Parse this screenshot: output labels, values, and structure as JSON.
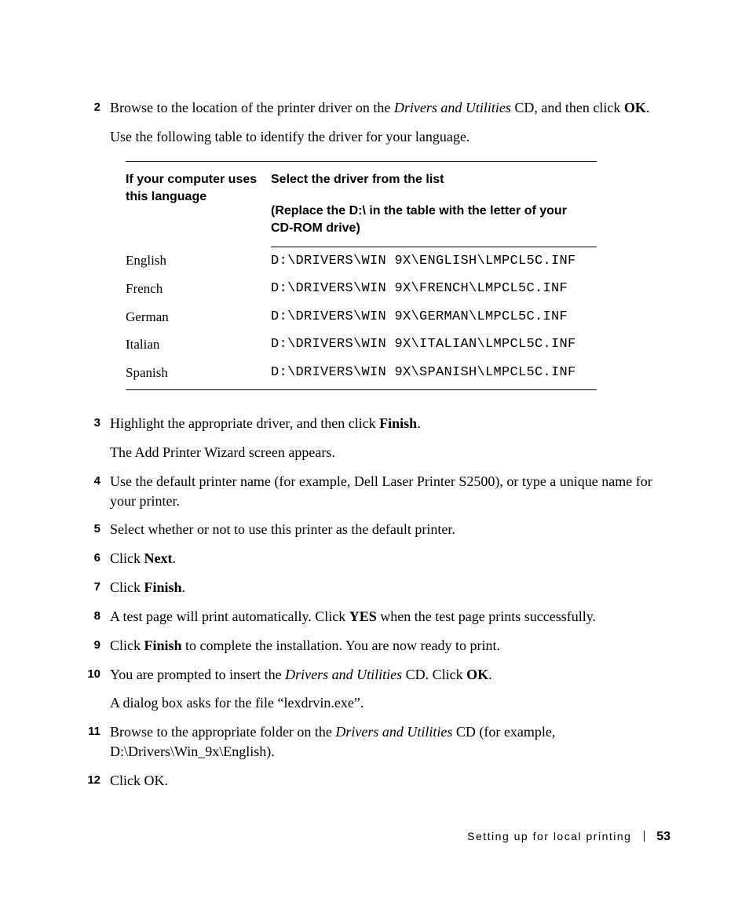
{
  "steps": {
    "s2": {
      "num": "2",
      "p1a": "Browse to the location of the printer driver on the ",
      "p1_em": "Drivers and Utilities",
      "p1b": " CD, and then click ",
      "p1_bold": "OK",
      "p1c": ".",
      "p2": "Use the following table to identify the driver for your language."
    },
    "s3": {
      "num": "3",
      "p1a": "Highlight the appropriate driver, and then click ",
      "p1_bold": "Finish",
      "p1b": ".",
      "p2": "The Add Printer Wizard screen appears."
    },
    "s4": {
      "num": "4",
      "p1": "Use the default printer name (for example, Dell Laser Printer S2500), or type a unique name for your printer."
    },
    "s5": {
      "num": "5",
      "p1": "Select whether or not to use this printer as the default printer."
    },
    "s6": {
      "num": "6",
      "p1a": "Click ",
      "p1_bold": "Next",
      "p1b": "."
    },
    "s7": {
      "num": "7",
      "p1a": "Click ",
      "p1_bold": "Finish",
      "p1b": "."
    },
    "s8": {
      "num": "8",
      "p1a": "A test page will print automatically. Click ",
      "p1_bold": "YES",
      "p1b": " when the test page prints successfully."
    },
    "s9": {
      "num": "9",
      "p1a": "Click ",
      "p1_bold": "Finish",
      "p1b": " to complete the installation. You are now ready to print."
    },
    "s10": {
      "num": "10",
      "p1a": "You are prompted to insert the ",
      "p1_em": "Drivers and Utilities",
      "p1b": " CD. Click ",
      "p1_bold": "OK",
      "p1c": ".",
      "p2": "A dialog box asks for the file “lexdrvin.exe”."
    },
    "s11": {
      "num": "11",
      "p1a": "Browse to the appropriate folder on the ",
      "p1_em": "Drivers and Utilities",
      "p1b": " CD (for example, D:\\Drivers\\Win_9x\\English)."
    },
    "s12": {
      "num": "12",
      "p1": "Click OK."
    }
  },
  "table": {
    "head_col1": "If your computer uses this language",
    "head_col2": "Select the driver from the list",
    "head_col2_sub": "(Replace the D:\\ in the table with the letter of your CD-ROM drive)",
    "rows": [
      {
        "lang": "English",
        "path": "D:\\DRIVERS\\WIN 9X\\ENGLISH\\LMPCL5C.INF"
      },
      {
        "lang": "French",
        "path": "D:\\DRIVERS\\WIN 9X\\FRENCH\\LMPCL5C.INF"
      },
      {
        "lang": "German",
        "path": "D:\\DRIVERS\\WIN 9X\\GERMAN\\LMPCL5C.INF"
      },
      {
        "lang": "Italian",
        "path": "D:\\DRIVERS\\WIN 9X\\ITALIAN\\LMPCL5C.INF"
      },
      {
        "lang": "Spanish",
        "path": "D:\\DRIVERS\\WIN 9X\\SPANISH\\LMPCL5C.INF"
      }
    ]
  },
  "footer": {
    "section": "Setting up for local printing",
    "page": "53"
  }
}
